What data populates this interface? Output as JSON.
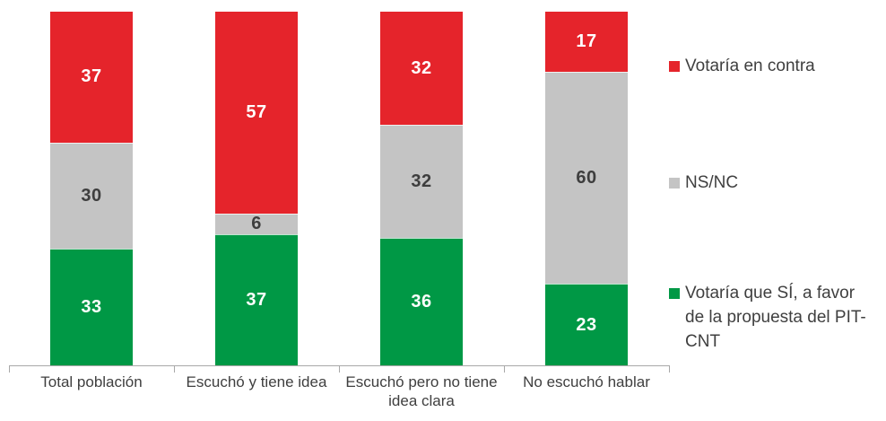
{
  "colors": {
    "red": "#E5242B",
    "gray": "#C4C4C4",
    "green": "#009845",
    "label_dark": "#3E3E3E",
    "label_light": "#FFFFFF",
    "axis": "#A8A8A8",
    "text": "#3F3F3F"
  },
  "chart_data": {
    "type": "bar",
    "subtype": "stacked-100-percent",
    "orientation": "vertical",
    "grid": false,
    "legend_position": "right",
    "ylim": [
      0,
      100
    ],
    "categories": [
      "Total población",
      "Escuchó y tiene idea",
      "Escuchó pero no tiene idea clara",
      "No escuchó hablar"
    ],
    "series": [
      {
        "name": "Votaría que SÍ, a favor de la propuesta del PIT-CNT",
        "color_key": "green",
        "values": [
          33,
          37,
          36,
          23
        ]
      },
      {
        "name": "NS/NC",
        "color_key": "gray",
        "values": [
          30,
          6,
          32,
          60
        ]
      },
      {
        "name": "Votaría en contra",
        "color_key": "red",
        "values": [
          37,
          57,
          32,
          17
        ]
      }
    ],
    "stack_order_top_to_bottom": [
      "Votaría en contra",
      "NS/NC",
      "Votaría que SÍ, a favor de la propuesta del PIT-CNT"
    ]
  }
}
